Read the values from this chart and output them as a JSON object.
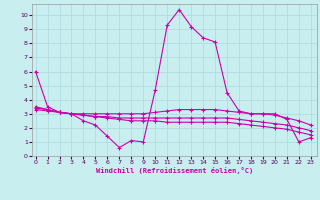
{
  "xlabel": "Windchill (Refroidissement éolien,°C)",
  "bg_color": "#c8eef0",
  "grid_color": "#b0dde0",
  "line_color": "#cc00aa",
  "x_ticks": [
    0,
    1,
    2,
    3,
    4,
    5,
    6,
    7,
    8,
    9,
    10,
    11,
    12,
    13,
    14,
    15,
    16,
    17,
    18,
    19,
    20,
    21,
    22,
    23
  ],
  "y_ticks": [
    0,
    1,
    2,
    3,
    4,
    5,
    6,
    7,
    8,
    9,
    10
  ],
  "ylim": [
    0,
    10.8
  ],
  "xlim": [
    -0.3,
    23.5
  ],
  "line1_x": [
    0,
    1,
    2,
    3,
    4,
    5,
    6,
    7,
    8,
    9,
    10,
    11,
    12,
    13,
    14,
    15,
    16,
    17,
    18,
    19,
    20,
    21,
    22,
    23
  ],
  "line1_y": [
    6.0,
    3.5,
    3.1,
    3.0,
    2.5,
    2.2,
    1.4,
    0.6,
    1.1,
    1.0,
    4.7,
    9.3,
    10.4,
    9.2,
    8.4,
    8.1,
    4.5,
    3.2,
    3.0,
    3.0,
    3.0,
    2.6,
    1.0,
    1.3
  ],
  "line2_x": [
    0,
    1,
    2,
    3,
    4,
    5,
    6,
    7,
    8,
    9,
    10,
    11,
    12,
    13,
    14,
    15,
    16,
    17,
    18,
    19,
    20,
    21,
    22,
    23
  ],
  "line2_y": [
    3.5,
    3.3,
    3.1,
    3.0,
    3.0,
    3.0,
    3.0,
    3.0,
    3.0,
    3.0,
    3.1,
    3.2,
    3.3,
    3.3,
    3.3,
    3.3,
    3.2,
    3.1,
    3.0,
    3.0,
    2.9,
    2.7,
    2.5,
    2.2
  ],
  "line3_x": [
    0,
    1,
    2,
    3,
    4,
    5,
    6,
    7,
    8,
    9,
    10,
    11,
    12,
    13,
    14,
    15,
    16,
    17,
    18,
    19,
    20,
    21,
    22,
    23
  ],
  "line3_y": [
    3.4,
    3.3,
    3.1,
    3.0,
    2.9,
    2.8,
    2.8,
    2.7,
    2.7,
    2.7,
    2.7,
    2.7,
    2.7,
    2.7,
    2.7,
    2.7,
    2.7,
    2.6,
    2.5,
    2.4,
    2.3,
    2.2,
    2.0,
    1.8
  ],
  "line4_x": [
    0,
    1,
    2,
    3,
    4,
    5,
    6,
    7,
    8,
    9,
    10,
    11,
    12,
    13,
    14,
    15,
    16,
    17,
    18,
    19,
    20,
    21,
    22,
    23
  ],
  "line4_y": [
    3.3,
    3.2,
    3.1,
    3.0,
    2.9,
    2.8,
    2.7,
    2.6,
    2.5,
    2.5,
    2.5,
    2.4,
    2.4,
    2.4,
    2.4,
    2.4,
    2.4,
    2.3,
    2.2,
    2.1,
    2.0,
    1.9,
    1.7,
    1.5
  ]
}
